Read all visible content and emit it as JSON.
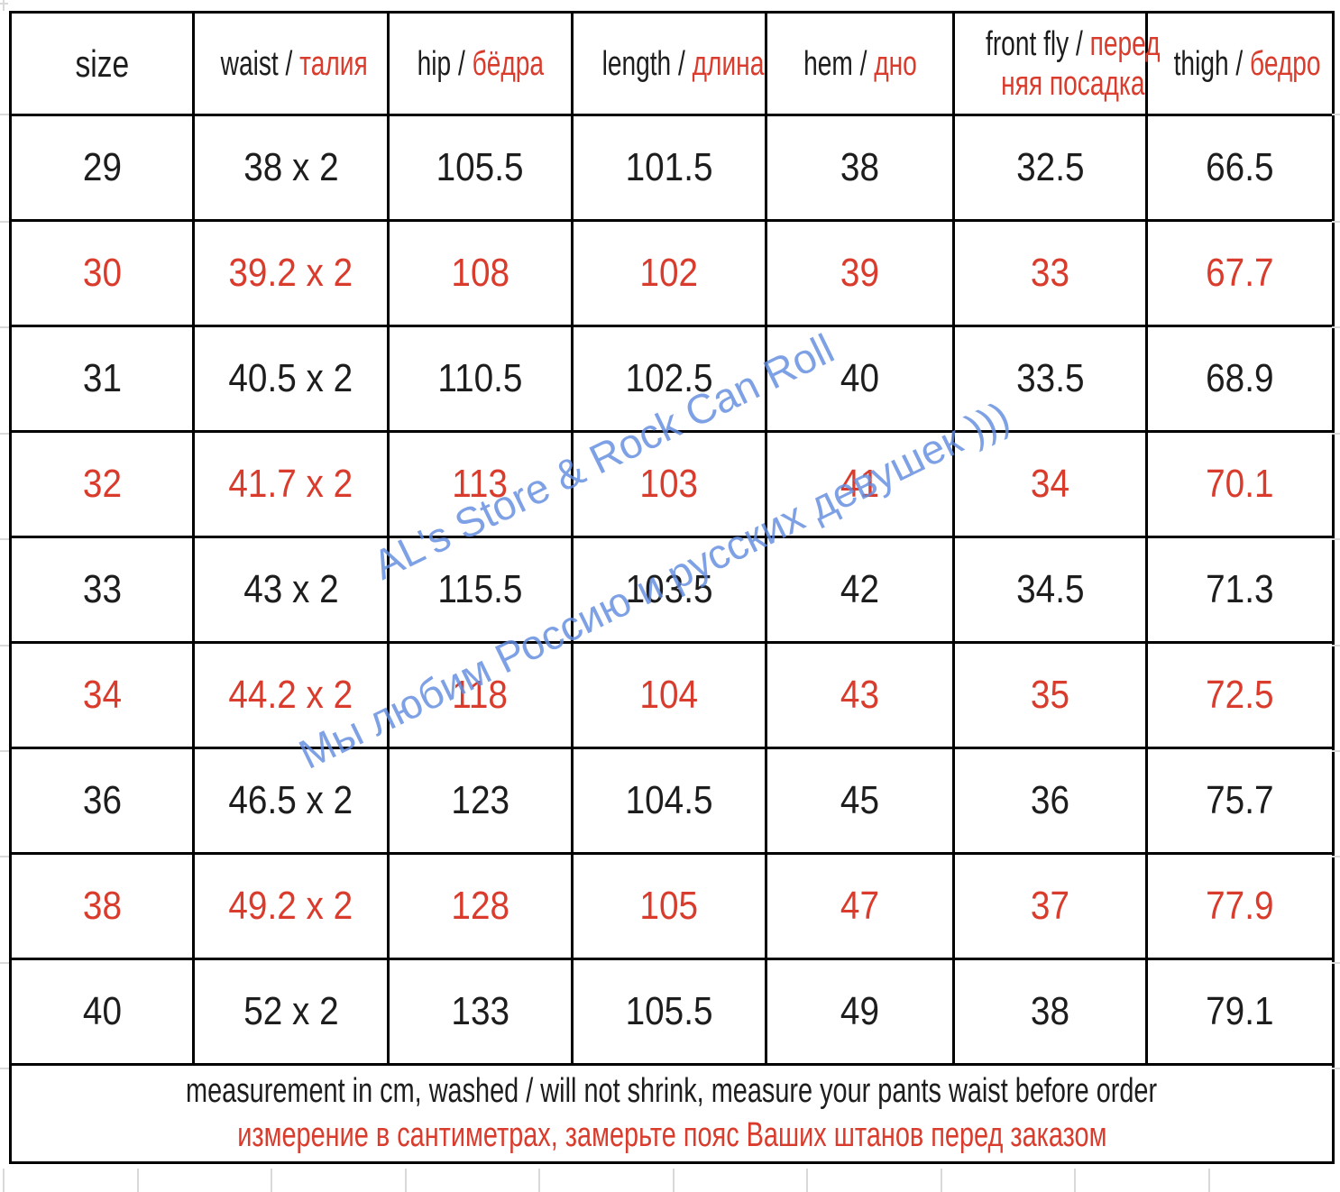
{
  "colors": {
    "background": "#ffffff",
    "text_black": "#1d1d1d",
    "text_red": "#d93c2d",
    "border_black": "#000000",
    "watermark_blue": "rgba(97,140,224,0.82)",
    "gridline_gray": "#d9d9d9"
  },
  "watermark": {
    "line1": "AL's Store & Rock Can Roll",
    "line2": "Мы любим Россию и русских девушек )))"
  },
  "chart_data": {
    "type": "table",
    "separator": " / ",
    "columns": [
      {
        "en": "size",
        "ru": ""
      },
      {
        "en": "waist",
        "ru": "талия"
      },
      {
        "en": "hip",
        "ru": "бёдра"
      },
      {
        "en": "length",
        "ru": "длина"
      },
      {
        "en": "hem",
        "ru": "дно"
      },
      {
        "en": "front fly",
        "ru": "передняя посадка",
        "ru_wrap": [
          "перед",
          "няя посадка"
        ]
      },
      {
        "en": "thigh",
        "ru": "бедро"
      }
    ],
    "rows": [
      {
        "style": "black",
        "cells": [
          "29",
          "38 x 2",
          "105.5",
          "101.5",
          "38",
          "32.5",
          "66.5"
        ]
      },
      {
        "style": "red",
        "cells": [
          "30",
          "39.2 x 2",
          "108",
          "102",
          "39",
          "33",
          "67.7"
        ]
      },
      {
        "style": "black",
        "cells": [
          "31",
          "40.5 x 2",
          "110.5",
          "102.5",
          "40",
          "33.5",
          "68.9"
        ]
      },
      {
        "style": "red",
        "cells": [
          "32",
          "41.7 x 2",
          "113",
          "103",
          "41",
          "34",
          "70.1"
        ]
      },
      {
        "style": "black",
        "cells": [
          "33",
          "43 x 2",
          "115.5",
          "103.5",
          "42",
          "34.5",
          "71.3"
        ]
      },
      {
        "style": "red",
        "cells": [
          "34",
          "44.2 x 2",
          "118",
          "104",
          "43",
          "35",
          "72.5"
        ]
      },
      {
        "style": "black",
        "cells": [
          "36",
          "46.5 x 2",
          "123",
          "104.5",
          "45",
          "36",
          "75.7"
        ]
      },
      {
        "style": "red",
        "cells": [
          "38",
          "49.2 x 2",
          "128",
          "105",
          "47",
          "37",
          "77.9"
        ]
      },
      {
        "style": "black",
        "cells": [
          "40",
          "52 x 2",
          "133",
          "105.5",
          "49",
          "38",
          "79.1"
        ]
      }
    ],
    "footer": {
      "en": "measurement in cm, washed / will not shrink, measure your pants waist before order",
      "ru": "измерение в сантиметрах, замерьте пояс Ваших штанов перед заказом"
    }
  }
}
